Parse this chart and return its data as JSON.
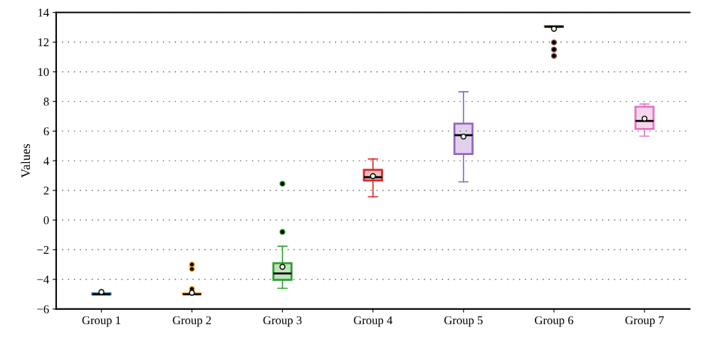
{
  "chart_data": {
    "type": "box",
    "ylabel": "Values",
    "categories": [
      "Group 1",
      "Group 2",
      "Group 3",
      "Group 4",
      "Group 5",
      "Group 6",
      "Group 7"
    ],
    "colors": [
      "#1f77b4",
      "#ff9f1c",
      "#2ca02c",
      "#d62728",
      "#9467bd",
      "#8c564b",
      "#e377c2"
    ],
    "boxes": [
      {
        "low": -5.02,
        "q1": -5.02,
        "median": -5.0,
        "q3": -4.95,
        "high": -4.95,
        "mean": -4.85
      },
      {
        "low": -5.0,
        "q1": -5.0,
        "median": -5.0,
        "q3": -4.95,
        "high": -4.95,
        "mean": -4.9,
        "outliers": [
          -3.0,
          -3.3,
          -4.65
        ]
      },
      {
        "low": -4.6,
        "q1": -4.03,
        "median": -3.6,
        "q3": -2.91,
        "high": -1.77,
        "mean": -3.15,
        "outliers": [
          2.45,
          -0.8
        ]
      },
      {
        "low": 1.57,
        "q1": 2.67,
        "median": 2.89,
        "q3": 3.39,
        "high": 4.12,
        "mean": 2.96
      },
      {
        "low": 2.58,
        "q1": 4.45,
        "median": 5.72,
        "q3": 6.5,
        "high": 8.65,
        "mean": 5.63
      },
      {
        "low": 13.0,
        "q1": 13.03,
        "median": 13.05,
        "q3": 13.07,
        "high": 13.07,
        "mean": 12.9,
        "outliers": [
          11.98,
          11.5,
          11.07
        ]
      },
      {
        "low": 5.66,
        "q1": 6.14,
        "median": 6.68,
        "q3": 7.64,
        "high": 7.82,
        "mean": 6.84
      }
    ],
    "ylim": [
      -6,
      14
    ],
    "yticks": [
      {
        "value": -6,
        "label": "−6"
      },
      {
        "value": -4,
        "label": "−4"
      },
      {
        "value": -2,
        "label": "−2"
      },
      0,
      2,
      4,
      6,
      8,
      10,
      12,
      14
    ],
    "grid": "y"
  }
}
